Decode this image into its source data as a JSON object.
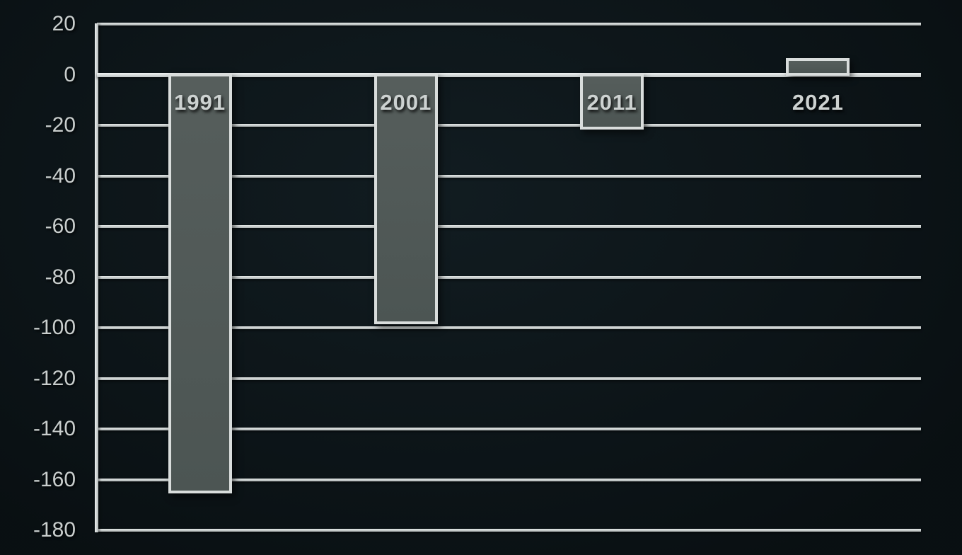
{
  "chart_data": {
    "type": "bar",
    "categories": [
      "1991",
      "2001",
      "2011",
      "2021"
    ],
    "values": [
      -165,
      -98,
      -21,
      6
    ],
    "title": "",
    "xlabel": "",
    "ylabel": "",
    "ylim": [
      -180,
      20
    ],
    "yticks": [
      20,
      0,
      -20,
      -40,
      -60,
      -80,
      -100,
      -120,
      -140,
      -160,
      -180
    ],
    "ytick_step": 20,
    "grid": true,
    "legend": false,
    "axis_side": "left",
    "category_label_position": "inside-top-of-bar-below-zero-line"
  },
  "colors": {
    "background": "#0d161a",
    "bar_fill": "#4c5553",
    "bar_border": "#d9dddc",
    "gridline": "#aeb4b4",
    "zero_line": "#f0f3f3",
    "tick_label": "#c9cecd",
    "year_label": "#cdd2d1"
  }
}
